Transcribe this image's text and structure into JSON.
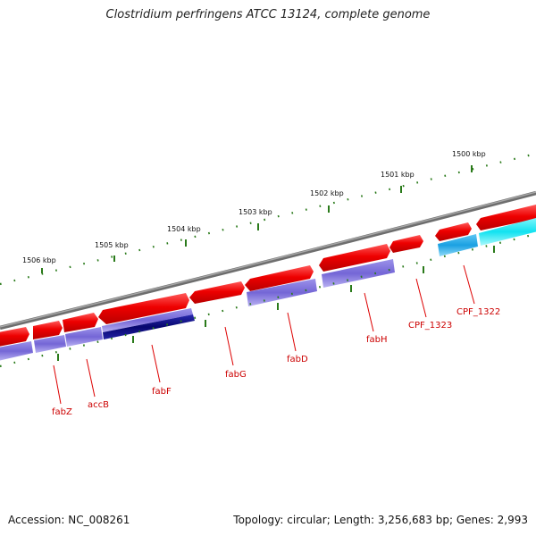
{
  "title": "Clostridium perfringens ATCC 13124, complete genome",
  "footer": {
    "accession_label": "Accession:",
    "accession": "NC_008261",
    "topology_label": "Topology:",
    "topology": "circular",
    "length_label": "Length:",
    "length": "3,256,683 bp",
    "genes_label": "Genes:",
    "genes": "2,993"
  },
  "kbp_ticks": [
    "1506 kbp",
    "1505 kbp",
    "1504 kbp",
    "1503 kbp",
    "1502 kbp",
    "1501 kbp",
    "1500 kbp"
  ],
  "genes": [
    {
      "label": "fabZ"
    },
    {
      "label": "accB"
    },
    {
      "label": "fabF"
    },
    {
      "label": "fabG"
    },
    {
      "label": "fabD"
    },
    {
      "label": "fabH"
    },
    {
      "label": "CPF_1323"
    },
    {
      "label": "CPF_1322"
    }
  ],
  "colors": {
    "backbone": "#7a7a7a",
    "tick": "#2a7a1a",
    "forward_gene": "#ee0000",
    "cds_purple": "#7b6fd6",
    "cds_navy": "#0b0b80",
    "cds_blue": "#1fa6e6",
    "cds_cyan": "#18e6f2",
    "label_red": "#cc0000"
  }
}
